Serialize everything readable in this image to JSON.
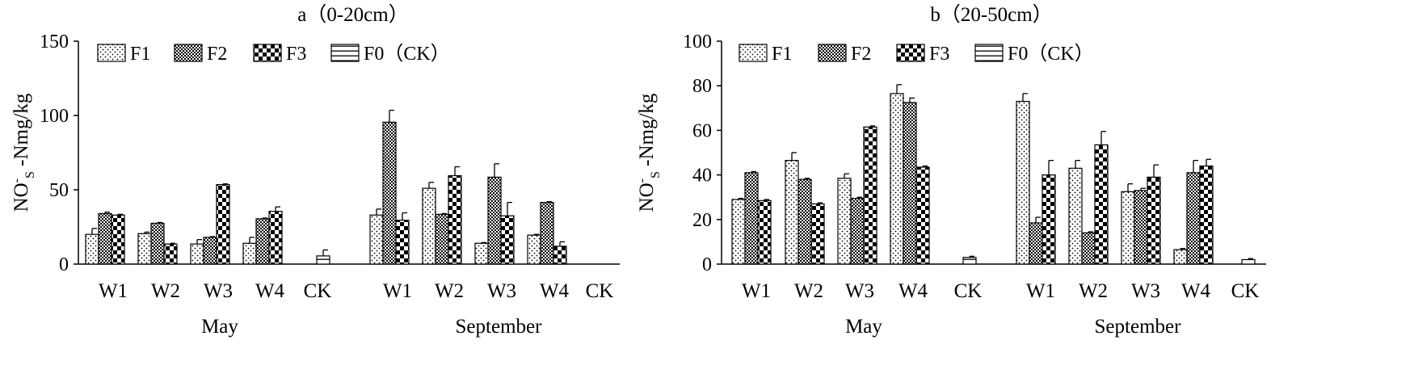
{
  "chart_data": [
    {
      "type": "bar",
      "title": "a（0-20cm）",
      "ylabel_main": "NO",
      "ylabel_sup": "-",
      "ylabel_sub": "S",
      "ylabel_rest": " -Nmg/kg",
      "ylim": [
        0,
        150
      ],
      "yticks": [
        0,
        50,
        100,
        150
      ],
      "groups": [
        "May",
        "September"
      ],
      "categories": [
        "W1",
        "W2",
        "W3",
        "W4",
        "CK"
      ],
      "series": [
        {
          "name": "F1",
          "pattern": "dots",
          "values": [
            [
              20,
              20.5,
              13.5,
              14,
              null
            ],
            [
              33,
              51,
              14,
              19.5,
              null
            ]
          ],
          "errors": [
            [
              4,
              1,
              3,
              4,
              null
            ],
            [
              4,
              4,
              0.5,
              0.5,
              null
            ]
          ]
        },
        {
          "name": "F2",
          "pattern": "checks",
          "values": [
            [
              34,
              27.5,
              18,
              30.5,
              null
            ],
            [
              95.5,
              33.5,
              58.5,
              41.5,
              null
            ]
          ],
          "errors": [
            [
              1,
              0.5,
              0.5,
              0.5,
              null
            ],
            [
              8,
              0.5,
              9,
              0.5,
              null
            ]
          ]
        },
        {
          "name": "F3",
          "pattern": "checkerboard",
          "values": [
            [
              33,
              13.5,
              53.5,
              35.5,
              null
            ],
            [
              29.5,
              59.5,
              32.5,
              12,
              null
            ]
          ],
          "errors": [
            [
              0.5,
              0.5,
              0.5,
              3,
              null
            ],
            [
              5,
              6,
              9,
              3,
              null
            ]
          ]
        },
        {
          "name": "F0（CK）",
          "pattern": "horizontal-lines",
          "values": [
            [
              null,
              null,
              null,
              null,
              5.5
            ],
            [
              null,
              null,
              null,
              null,
              0
            ]
          ],
          "errors": [
            [
              null,
              null,
              null,
              null,
              4
            ],
            [
              null,
              null,
              null,
              null,
              0
            ]
          ]
        }
      ]
    },
    {
      "type": "bar",
      "title": "b（20-50cm）",
      "ylabel_main": "NO",
      "ylabel_sup": "-",
      "ylabel_sub": "S",
      "ylabel_rest": " -Nmg/kg",
      "ylim": [
        0,
        100
      ],
      "yticks": [
        0,
        20,
        40,
        60,
        80,
        100
      ],
      "groups": [
        "May",
        "September"
      ],
      "categories": [
        "W1",
        "W2",
        "W3",
        "W4",
        "CK"
      ],
      "series": [
        {
          "name": "F1",
          "pattern": "dots",
          "values": [
            [
              29,
              46.5,
              38.5,
              76.5,
              null
            ],
            [
              73,
              43,
              32.5,
              6.5,
              null
            ]
          ],
          "errors": [
            [
              0.5,
              3.5,
              2,
              4,
              null
            ],
            [
              3.5,
              3.5,
              3.5,
              0.5,
              null
            ]
          ]
        },
        {
          "name": "F2",
          "pattern": "checks",
          "values": [
            [
              41,
              38,
              29.5,
              72.5,
              null
            ],
            [
              18.5,
              14,
              33,
              41,
              null
            ]
          ],
          "errors": [
            [
              0.5,
              0.5,
              0.5,
              2,
              null
            ],
            [
              2.5,
              0.5,
              1,
              5.5,
              null
            ]
          ]
        },
        {
          "name": "F3",
          "pattern": "checkerboard",
          "values": [
            [
              28.5,
              27,
              61.5,
              43.5,
              null
            ],
            [
              40,
              53.5,
              39,
              44,
              null
            ]
          ],
          "errors": [
            [
              0.5,
              0.5,
              0.5,
              0.5,
              null
            ],
            [
              6.5,
              6,
              5.5,
              3,
              null
            ]
          ]
        },
        {
          "name": "F0（CK）",
          "pattern": "horizontal-lines",
          "values": [
            [
              null,
              null,
              null,
              null,
              3
            ],
            [
              null,
              null,
              null,
              null,
              2
            ]
          ],
          "errors": [
            [
              null,
              null,
              null,
              null,
              0.5
            ],
            [
              null,
              null,
              null,
              null,
              0.5
            ]
          ]
        }
      ]
    }
  ]
}
